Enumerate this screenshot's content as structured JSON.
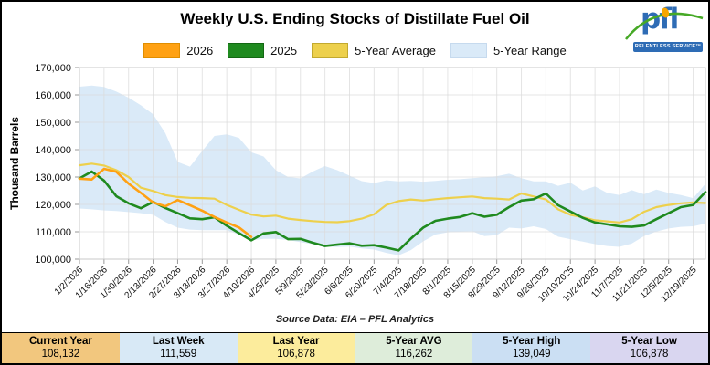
{
  "title": "Weekly U.S. Ending Stocks of Distillate Fuel Oil",
  "logo": {
    "text": "pfl",
    "tagline": "RELENTLESS SERVICE™"
  },
  "source_note": "Source Data: EIA – PFL Analytics",
  "y_axis": {
    "label": "Thousand Barrels",
    "ticks": [
      "170,000",
      "160,000",
      "150,000",
      "140,000",
      "130,000",
      "120,000",
      "110,000",
      "100,000"
    ]
  },
  "legend": [
    {
      "key": "2026",
      "label": "2026",
      "fill": "#FFA113",
      "border": "#E08E00"
    },
    {
      "key": "2025",
      "label": "2025",
      "fill": "#1F8A1F",
      "border": "#136813"
    },
    {
      "key": "5-year-average",
      "label": "5-Year Average",
      "fill": "#EDD04C",
      "border": "#C2A92F"
    },
    {
      "key": "5-year-range",
      "label": "5-Year Range",
      "fill": "#DAEAF8",
      "border": "#C6DAEE"
    }
  ],
  "stats": [
    {
      "key": "current-year",
      "label": "Current Year",
      "value": "108,132",
      "bg": "#F2C77E"
    },
    {
      "key": "last-week",
      "label": "Last Week",
      "value": "111,559",
      "bg": "#D8E9F6"
    },
    {
      "key": "last-year",
      "label": "Last Year",
      "value": "106,878",
      "bg": "#FCEC9C"
    },
    {
      "key": "5-year-avg",
      "label": "5-Year AVG",
      "value": "116,262",
      "bg": "#DEEDDA"
    },
    {
      "key": "5-year-high",
      "label": "5-Year High",
      "value": "139,049",
      "bg": "#CBDFF3"
    },
    {
      "key": "5-year-low",
      "label": "5-Year Low",
      "value": "106,878",
      "bg": "#D9D6F0"
    }
  ],
  "chart_data": {
    "type": "line",
    "title": "Weekly U.S. Ending Stocks of Distillate Fuel Oil",
    "xlabel": "",
    "ylabel": "Thousand Barrels",
    "ylim": [
      100000,
      170000
    ],
    "grid": true,
    "legend_position": "top",
    "weeks": 52,
    "x_tick_labels": [
      "1/2/2026",
      "1/16/2026",
      "1/30/2026",
      "2/13/2026",
      "2/27/2026",
      "3/13/2026",
      "3/27/2026",
      "4/10/2026",
      "4/25/2025",
      "5/9/2025",
      "5/23/2025",
      "6/6/2025",
      "6/20/2025",
      "7/4/2025",
      "7/18/2025",
      "8/1/2025",
      "8/15/2025",
      "8/29/2025",
      "9/12/2025",
      "9/26/2025",
      "10/10/2025",
      "10/24/2025",
      "11/7/2025",
      "11/21/2025",
      "12/5/2025",
      "12/19/2025"
    ],
    "series": [
      {
        "name": "2026",
        "color": "#FFA113",
        "width": 2.6,
        "values": [
          129400,
          129100,
          133000,
          131900,
          127600,
          124200,
          120700,
          119300,
          121600,
          119700,
          117700,
          115400,
          113400,
          111559,
          108132
        ]
      },
      {
        "name": "2025",
        "color": "#1F8A1F",
        "width": 2.6,
        "values": [
          129500,
          132000,
          128700,
          123000,
          120400,
          118600,
          120900,
          118700,
          116800,
          114900,
          114600,
          115300,
          112200,
          109500,
          106878,
          109400,
          109900,
          107300,
          107400,
          106000,
          104800,
          105300,
          105800,
          104900,
          105100,
          104200,
          103200,
          107500,
          111500,
          114000,
          114800,
          115400,
          116800,
          115500,
          116200,
          119000,
          121400,
          121900,
          124000,
          119700,
          117400,
          115100,
          113400,
          112700,
          112000,
          111800,
          112300,
          114600,
          116800,
          119000,
          119800,
          124500
        ]
      },
      {
        "name": "5-Year Average",
        "color": "#EDD04C",
        "width": 2.2,
        "values": [
          134300,
          134900,
          134200,
          132500,
          130000,
          126100,
          124900,
          123400,
          122700,
          122400,
          122300,
          122100,
          119800,
          118000,
          116262,
          115600,
          115900,
          114800,
          114300,
          113900,
          113600,
          113500,
          113900,
          114800,
          116400,
          119800,
          121200,
          121800,
          121400,
          121900,
          122300,
          122600,
          122900,
          122300,
          122100,
          121800,
          124000,
          122900,
          121800,
          118200,
          116200,
          115300,
          114200,
          113800,
          113400,
          114600,
          117300,
          119000,
          119800,
          120400,
          120700,
          120500
        ]
      }
    ],
    "range": {
      "name": "5-Year Range",
      "color": "#DAEAF8",
      "max": [
        163000,
        163400,
        162900,
        161200,
        159000,
        156200,
        152900,
        146000,
        135500,
        133800,
        139500,
        145000,
        145600,
        144300,
        139049,
        137500,
        132500,
        130000,
        129500,
        132000,
        134000,
        132500,
        130500,
        128500,
        127800,
        128800,
        128400,
        128600,
        128300,
        128600,
        129000,
        129200,
        129600,
        129900,
        130300,
        131200,
        129600,
        128400,
        128400,
        126800,
        127900,
        125100,
        126600,
        124200,
        123400,
        125200,
        123700,
        125400,
        124200,
        123400,
        122300,
        127500
      ],
      "min": [
        118500,
        118200,
        117800,
        117600,
        117200,
        116800,
        116200,
        113600,
        111500,
        110800,
        110600,
        110600,
        110600,
        108900,
        106878,
        107400,
        107400,
        107000,
        106200,
        105500,
        104600,
        104400,
        104600,
        103900,
        103500,
        102300,
        101400,
        103300,
        106500,
        109000,
        109800,
        110000,
        110200,
        108400,
        108800,
        111500,
        111200,
        112000,
        111000,
        108200,
        107300,
        106400,
        105500,
        104800,
        104500,
        105700,
        108400,
        110100,
        111200,
        111800,
        112000,
        113000
      ]
    }
  }
}
